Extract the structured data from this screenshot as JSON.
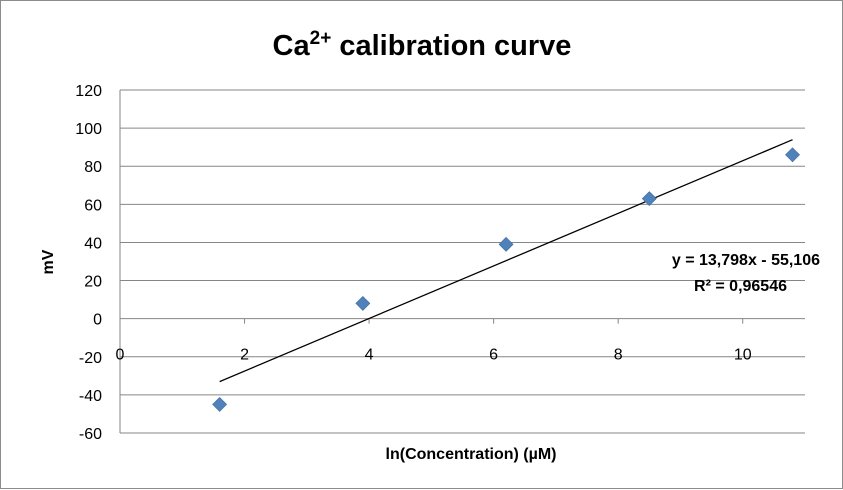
{
  "chart_data": {
    "type": "scatter",
    "title": "Ca",
    "title_superscript": "2+",
    "title_rest": " calibration curve",
    "xlabel": "ln(Concentration) (µM)",
    "ylabel": "mV",
    "xlim": [
      0,
      11
    ],
    "ylim": [
      -60,
      120
    ],
    "x_ticks": [
      "0",
      "2",
      "4",
      "6",
      "8",
      "10"
    ],
    "y_ticks": [
      "120",
      "100",
      "80",
      "60",
      "40",
      "20",
      "0",
      "-20",
      "-40",
      "-60"
    ],
    "grid": true,
    "marker": "diamond",
    "marker_color": "#4f81bd",
    "points": [
      {
        "x": 1.6,
        "y": -45
      },
      {
        "x": 3.9,
        "y": 8
      },
      {
        "x": 6.2,
        "y": 39
      },
      {
        "x": 8.5,
        "y": 63
      },
      {
        "x": 10.8,
        "y": 86
      }
    ],
    "trendline": {
      "type": "linear",
      "slope": 13.798,
      "intercept": -55.106,
      "x_range": [
        1.6,
        10.8
      ],
      "equation_label": "y = 13,798x - 55,106",
      "r2_label": "R² = 0,96546"
    }
  }
}
